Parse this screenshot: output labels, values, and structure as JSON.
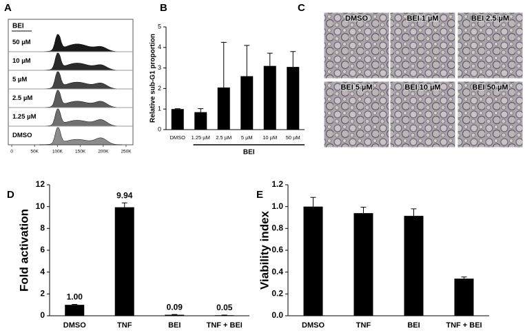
{
  "chart_data": [
    {
      "panel": "A",
      "type": "flow-histogram",
      "group_label": "BEI",
      "rows": [
        "50 µM",
        "10 µM",
        "5 µM",
        "2.5 µM",
        "1.25 µM",
        "DMSO"
      ],
      "colors": [
        "#1a1a1a",
        "#2a2a2a",
        "#444444",
        "#5a5a5a",
        "#707070",
        "#8c8c8c"
      ],
      "xlim": [
        0,
        265000
      ],
      "xticks": [
        0,
        {
          "value": 50000,
          "label": "50K"
        },
        {
          "value": 100000,
          "label": "100K"
        },
        {
          "value": 150000,
          "label": "150K"
        },
        {
          "value": 200000,
          "label": "200K"
        },
        {
          "value": 250000,
          "label": "250K"
        }
      ]
    },
    {
      "panel": "B",
      "type": "bar",
      "ylabel": "Relative sub-G1  proportion",
      "xlabel": "BEI",
      "categories": [
        "DMSO",
        "1.25 µM",
        "2.5 µM",
        "5 µM",
        "10 µM",
        "50 µM"
      ],
      "values": [
        1,
        0.85,
        2.05,
        2.6,
        3.1,
        3.05
      ],
      "errors": [
        0.02,
        0.17,
        2.2,
        1.5,
        0.62,
        0.75
      ],
      "ylim": [
        0,
        5
      ],
      "yticks": [
        0,
        1,
        2,
        3,
        4,
        5
      ],
      "color": "#000000"
    },
    {
      "panel": "D",
      "type": "bar",
      "ylabel": "Fold activation",
      "categories": [
        "DMSO",
        "TNF",
        "BEI",
        "TNF + BEI"
      ],
      "values": [
        1,
        9.94,
        0.09,
        0.05
      ],
      "value_labels": [
        "1.00",
        "9.94",
        "0.09",
        "0.05"
      ],
      "errors": [
        0.04,
        0.4,
        0.03,
        0.01
      ],
      "ylim": [
        0,
        12
      ],
      "yticks": [
        0,
        2,
        4,
        6,
        8,
        10,
        12
      ],
      "color": "#000000"
    },
    {
      "panel": "E",
      "type": "bar",
      "ylabel": "Viability index",
      "categories": [
        "DMSO",
        "TNF",
        "BEI",
        "TNF + BEI"
      ],
      "values": [
        1,
        0.94,
        0.915,
        0.34
      ],
      "errors": [
        0.085,
        0.055,
        0.065,
        0.015
      ],
      "ylim": [
        0,
        1.2
      ],
      "yticks": [
        {
          "value": 0,
          "label": "0.0"
        },
        0.2,
        0.4,
        0.6,
        0.8,
        {
          "value": 1,
          "label": "1.0"
        },
        1.2
      ],
      "color": "#000000"
    }
  ],
  "image_panel": {
    "panel": "C",
    "labels": [
      "DMSO",
      "BEI 1 µM",
      "BEI 2.5 µM",
      "BEI 5 µM",
      "BEI 10 µM",
      "BEI 50 µM"
    ]
  }
}
